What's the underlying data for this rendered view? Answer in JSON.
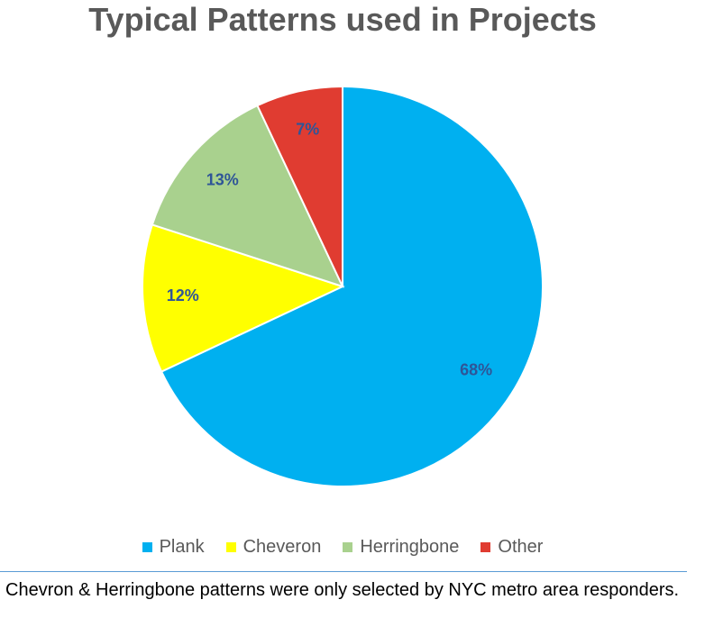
{
  "chart_data": {
    "type": "pie",
    "title": "Typical Patterns used in Projects",
    "categories": [
      "Plank",
      "Cheveron",
      "Herringbone",
      "Other"
    ],
    "values": [
      68,
      12,
      13,
      7
    ],
    "data_labels": [
      "68%",
      "12%",
      "13%",
      "7%"
    ],
    "colors": [
      "#00b0f0",
      "#ffff00",
      "#a9d18e",
      "#e03c31"
    ],
    "label_color": "#2f5597",
    "legend_position": "bottom"
  },
  "footnote": "Chevron & Herringbone patterns were only selected by NYC metro area responders."
}
